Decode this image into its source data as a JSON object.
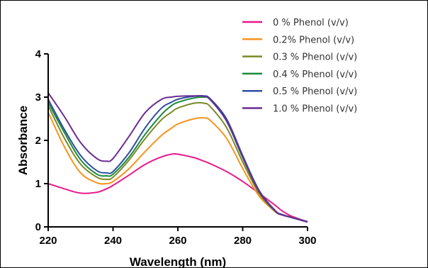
{
  "chart_data": {
    "type": "line",
    "title": "",
    "xlabel": "Wavelength (nm)",
    "ylabel": "Absorbance",
    "xlim": [
      220,
      300
    ],
    "ylim": [
      0,
      4
    ],
    "xticks": [
      220,
      240,
      260,
      280,
      300
    ],
    "yticks": [
      0,
      1,
      2,
      3,
      4
    ],
    "grid": false,
    "legend_position": "top-right",
    "x": [
      220,
      225,
      230,
      235,
      238,
      240,
      245,
      250,
      255,
      258,
      260,
      265,
      268,
      270,
      275,
      280,
      285,
      290,
      292,
      295,
      300
    ],
    "series": [
      {
        "name": "0 % Phenol (v/v)",
        "color": "#e8198b",
        "values": [
          1.0,
          0.88,
          0.78,
          0.8,
          0.88,
          0.96,
          1.2,
          1.45,
          1.62,
          1.68,
          1.68,
          1.6,
          1.52,
          1.46,
          1.28,
          1.05,
          0.78,
          0.5,
          0.38,
          0.25,
          0.12
        ]
      },
      {
        "name": "0.2% Phenol (v/v)",
        "color": "#f7931e",
        "values": [
          2.65,
          1.85,
          1.25,
          1.02,
          1.0,
          1.05,
          1.35,
          1.75,
          2.12,
          2.28,
          2.38,
          2.5,
          2.52,
          2.46,
          2.05,
          1.35,
          0.72,
          0.35,
          0.28,
          0.22,
          0.12
        ]
      },
      {
        "name": "0.3 % Phenol (v/v)",
        "color": "#7a8a27",
        "values": [
          2.8,
          2.05,
          1.45,
          1.15,
          1.1,
          1.15,
          1.55,
          2.05,
          2.48,
          2.65,
          2.75,
          2.86,
          2.86,
          2.78,
          2.3,
          1.5,
          0.78,
          0.36,
          0.28,
          0.22,
          0.12
        ]
      },
      {
        "name": "0.4 % Phenol (v/v)",
        "color": "#1a8a3e",
        "values": [
          2.88,
          2.18,
          1.55,
          1.22,
          1.18,
          1.22,
          1.62,
          2.15,
          2.6,
          2.8,
          2.88,
          2.98,
          3.0,
          2.94,
          2.45,
          1.6,
          0.82,
          0.37,
          0.29,
          0.22,
          0.12
        ]
      },
      {
        "name": "0.5 % Phenol (v/v)",
        "color": "#2e4fa3",
        "values": [
          2.95,
          2.25,
          1.65,
          1.3,
          1.25,
          1.28,
          1.72,
          2.3,
          2.75,
          2.88,
          2.95,
          3.02,
          3.03,
          2.96,
          2.5,
          1.65,
          0.85,
          0.38,
          0.29,
          0.22,
          0.12
        ]
      },
      {
        "name": "1.0 % Phenol (v/v)",
        "color": "#6a2c91",
        "values": [
          3.1,
          2.55,
          1.95,
          1.58,
          1.52,
          1.58,
          2.1,
          2.65,
          2.95,
          3.0,
          3.02,
          3.03,
          3.02,
          2.94,
          2.45,
          1.62,
          0.83,
          0.37,
          0.28,
          0.22,
          0.11
        ]
      }
    ]
  }
}
